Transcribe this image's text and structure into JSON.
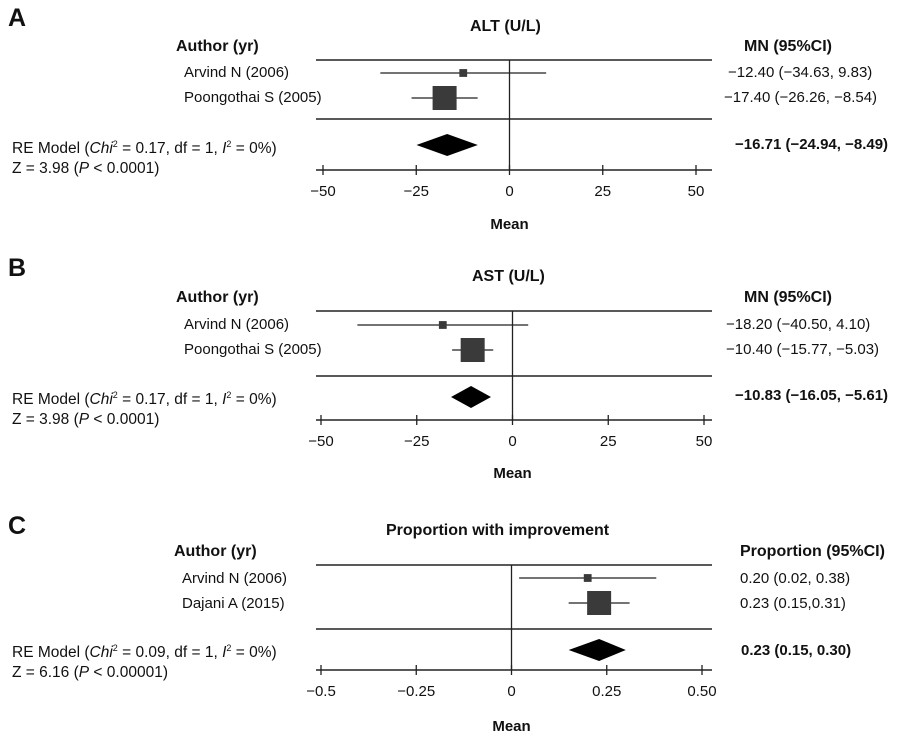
{
  "chart_data": [
    {
      "type": "forest",
      "panel_label": "A",
      "title": "ALT (U/L)",
      "author_header": "Author (yr)",
      "effect_header": "MN (95%CI)",
      "xlabel": "Mean",
      "xlim": [
        -60,
        54
      ],
      "xticks": [
        -50,
        -25,
        0,
        25,
        50
      ],
      "xtick_labels": [
        "−50",
        "−25",
        "0",
        "25",
        "50"
      ],
      "studies": [
        {
          "name": "Arvind N (2006)",
          "est": -12.4,
          "lo": -34.63,
          "hi": 9.83,
          "weight": 0.1,
          "ci_text": "−12.40 (−34.63, 9.83)"
        },
        {
          "name": "Poongothai S (2005)",
          "est": -17.4,
          "lo": -26.26,
          "hi": -8.54,
          "weight": 1.0,
          "ci_text": "−17.40 (−26.26, −8.54)"
        }
      ],
      "summary": {
        "est": -16.71,
        "lo": -24.94,
        "hi": -8.49,
        "ci_text": "−16.71 (−24.94, −8.49)",
        "model_prefix": "RE Model (",
        "chi_label": "Chi",
        "chi_sup": "2",
        "model_mid": " = 0.17, df = 1, ",
        "i_label": "I",
        "i_sup": "2",
        "model_suffix": " = 0%)",
        "z_prefix": "Z = 3.98 (",
        "p_label": "P",
        "z_suffix": " < 0.0001)"
      }
    },
    {
      "type": "forest",
      "panel_label": "B",
      "title": "AST (U/L)",
      "author_header": "Author (yr)",
      "effect_header": "MN (95%CI)",
      "xlabel": "Mean",
      "xlim": [
        -63,
        63
      ],
      "xticks": [
        -50,
        -25,
        0,
        25,
        50
      ],
      "xtick_labels": [
        "−50",
        "−25",
        "0",
        "25",
        "50"
      ],
      "studies": [
        {
          "name": "Arvind N (2006)",
          "est": -18.2,
          "lo": -40.5,
          "hi": 4.1,
          "weight": 0.1,
          "ci_text": "−18.20 (−40.50, 4.10)"
        },
        {
          "name": "Poongothai S (2005)",
          "est": -10.4,
          "lo": -15.77,
          "hi": -5.03,
          "weight": 1.0,
          "ci_text": "−10.40 (−15.77, −5.03)"
        }
      ],
      "summary": {
        "est": -10.83,
        "lo": -16.05,
        "hi": -5.61,
        "ci_text": "−10.83 (−16.05, −5.61)",
        "model_prefix": "RE Model (",
        "chi_label": "Chi",
        "chi_sup": "2",
        "model_mid": " = 0.17, df = 1, ",
        "i_label": "I",
        "i_sup": "2",
        "model_suffix": " = 0%)",
        "z_prefix": "Z = 3.98 (",
        "p_label": "P",
        "z_suffix": " < 0.0001)"
      }
    },
    {
      "type": "forest",
      "panel_label": "C",
      "title": "Proportion with improvement",
      "author_header": "Author (yr)",
      "effect_header": "Proportion (95%CI)",
      "xlabel": "Mean",
      "xlim": [
        -0.63,
        0.63
      ],
      "xticks": [
        -0.5,
        -0.25,
        0,
        0.25,
        0.5
      ],
      "xtick_labels": [
        "−0.5",
        "−0.25",
        "0",
        "0.25",
        "0.50"
      ],
      "studies": [
        {
          "name": "Arvind N (2006)",
          "est": 0.2,
          "lo": 0.02,
          "hi": 0.38,
          "weight": 0.1,
          "ci_text": "0.20 (0.02, 0.38)"
        },
        {
          "name": "Dajani A (2015)",
          "est": 0.23,
          "lo": 0.15,
          "hi": 0.31,
          "weight": 1.0,
          "ci_text": "0.23 (0.15,0.31)"
        }
      ],
      "summary": {
        "est": 0.23,
        "lo": 0.15,
        "hi": 0.3,
        "ci_text": "0.23 (0.15, 0.30)",
        "model_prefix": "RE Model (",
        "chi_label": "Chi",
        "chi_sup": "2",
        "model_mid": " = 0.09, df = 1, ",
        "i_label": "I",
        "i_sup": "2",
        "model_suffix": " = 0%)",
        "z_prefix": "Z = 6.16 (",
        "p_label": "P",
        "z_suffix": " < 0.00001)"
      }
    }
  ]
}
